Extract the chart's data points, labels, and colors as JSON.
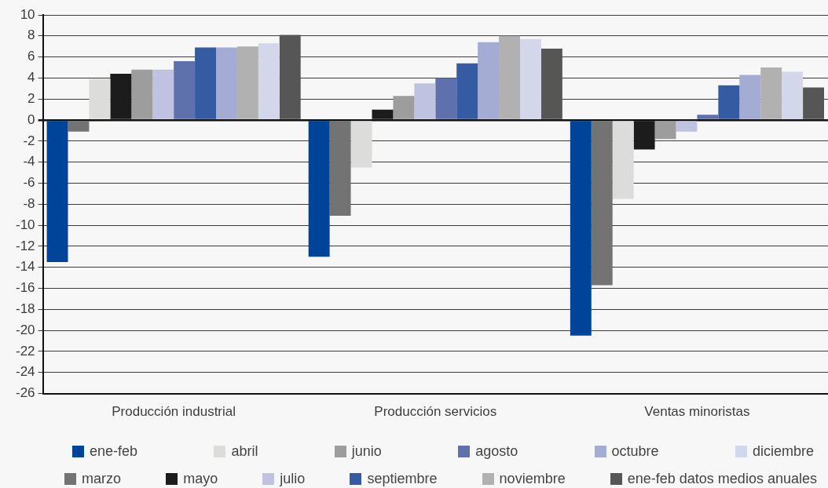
{
  "chart_data": {
    "type": "bar",
    "categories": [
      "Producción industrial",
      "Producción servicios",
      "Ventas minoristas"
    ],
    "series": [
      {
        "name": "ene-feb",
        "color": "#00449a",
        "values": [
          -13.5,
          -13.0,
          -20.5
        ]
      },
      {
        "name": "marzo",
        "color": "#737373",
        "values": [
          -1.1,
          -9.1,
          -15.7
        ]
      },
      {
        "name": "abril",
        "color": "#dcdcdb",
        "values": [
          3.9,
          -4.5,
          -7.5
        ]
      },
      {
        "name": "mayo",
        "color": "#1c1c1c",
        "values": [
          4.4,
          1.0,
          -2.8
        ]
      },
      {
        "name": "junio",
        "color": "#9d9d9d",
        "values": [
          4.8,
          2.3,
          -1.8
        ]
      },
      {
        "name": "julio",
        "color": "#bfc2e0",
        "values": [
          4.8,
          3.5,
          -1.1
        ]
      },
      {
        "name": "agosto",
        "color": "#5f71ad",
        "values": [
          5.6,
          4.0,
          0.5
        ]
      },
      {
        "name": "septiembre",
        "color": "#355ba2",
        "values": [
          6.9,
          5.4,
          3.3
        ]
      },
      {
        "name": "octubre",
        "color": "#a4acd3",
        "values": [
          6.9,
          7.4,
          4.3
        ]
      },
      {
        "name": "noviembre",
        "color": "#b1b1b1",
        "values": [
          7.0,
          8.0,
          5.0
        ]
      },
      {
        "name": "diciembre",
        "color": "#d4d6ea",
        "values": [
          7.3,
          7.7,
          4.6
        ]
      },
      {
        "name": "ene-feb datos medios anuales",
        "color": "#565656",
        "values": [
          8.1,
          6.8,
          3.1
        ]
      }
    ],
    "ylim": [
      -26,
      10
    ],
    "yticks": [
      -26,
      -24,
      -22,
      -20,
      -18,
      -16,
      -14,
      -12,
      -10,
      -8,
      -6,
      -4,
      -2,
      0,
      2,
      4,
      6,
      8,
      10
    ],
    "grid": "y",
    "legend": "bottom"
  }
}
